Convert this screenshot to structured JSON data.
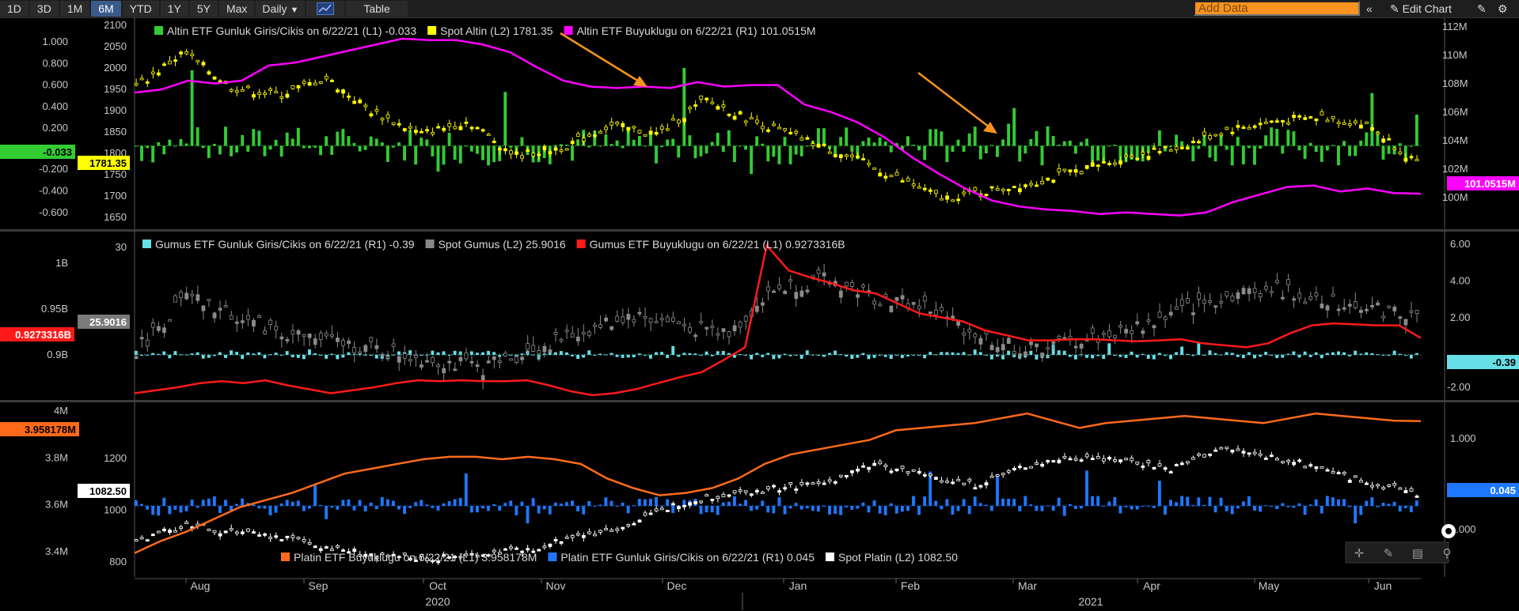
{
  "toolbar": {
    "ranges": [
      "1D",
      "3D",
      "1M",
      "6M",
      "YTD",
      "1Y",
      "5Y",
      "Max"
    ],
    "active_range": "6M",
    "frequency": "Daily",
    "table_label": "Table",
    "add_data_placeholder": "Add Data",
    "edit_chart_label": "Edit Chart"
  },
  "chart_data": [
    {
      "type": "bar+candlestick+line",
      "legend": [
        {
          "label": "Altin ETF Gunluk Giris/Cikis on 6/22/21 (L1) -0.033",
          "color": "#33cc33"
        },
        {
          "label": "Spot Altin (L2) 1781.35",
          "color": "#ffff00"
        },
        {
          "label": "Altin ETF Buyuklugu on 6/22/21 (R1) 101.0515M",
          "color": "#ff00ff"
        }
      ],
      "left1_ticks": [
        "1.000",
        "0.800",
        "0.600",
        "0.400",
        "0.200",
        "-0.200",
        "-0.400",
        "-0.600"
      ],
      "left2_ticks": [
        "2100",
        "2050",
        "2000",
        "1950",
        "1900",
        "1850",
        "1800",
        "1750",
        "1700",
        "1650"
      ],
      "right1_ticks": [
        "112M",
        "110M",
        "108M",
        "106M",
        "104M",
        "102M",
        "100M"
      ],
      "last_values": {
        "flows": "-0.033",
        "spot": "1781.35",
        "size": "101.0515M"
      },
      "series": [
        {
          "name": "Altin ETF Gunluk Giris/Cikis",
          "axis": "L1",
          "ylim": [
            -0.7,
            1.1
          ]
        },
        {
          "name": "Spot Altin",
          "axis": "L2",
          "ylim": [
            1640,
            2110
          ]
        },
        {
          "name": "Altin ETF Buyuklugu",
          "axis": "R1",
          "ylim": [
            99,
            112.5
          ],
          "values": [
            107.8,
            108.0,
            108.6,
            108.4,
            108.6,
            109.6,
            109.8,
            110.2,
            110.6,
            111.0,
            111.4,
            111.3,
            111.3,
            111.0,
            110.5,
            109.5,
            108.6,
            108.2,
            108.1,
            108.2,
            108.1,
            108.5,
            108.2,
            108.3,
            108.3,
            107.0,
            106.5,
            105.8,
            104.8,
            103.5,
            102.4,
            101.4,
            100.6,
            100.2,
            100.0,
            99.9,
            99.7,
            99.8,
            99.7,
            99.6,
            99.8,
            100.5,
            101.0,
            101.5,
            101.6,
            101.2,
            101.4,
            101.1,
            101.0515
          ]
        }
      ]
    },
    {
      "type": "bar+candlestick+line",
      "legend": [
        {
          "label": "Gumus ETF Gunluk Giris/Cikis on 6/22/21 (R1) -0.39",
          "color": "#66e0e6"
        },
        {
          "label": "Spot Gumus (L2) 25.9016",
          "color": "#888888"
        },
        {
          "label": "Gumus ETF Buyuklugu on 6/22/21 (L1) 0.9273316B",
          "color": "#ff1a1a"
        }
      ],
      "left1_ticks": [
        "1B",
        "0.95B",
        "0.9B"
      ],
      "left2_ticks": [
        "30",
        "25"
      ],
      "right1_ticks": [
        "6.00",
        "4.00",
        "2.00",
        "-2.00"
      ],
      "last_values": {
        "flows": "-0.39",
        "spot": "25.9016",
        "size": "0.9273316B"
      },
      "series": [
        {
          "name": "Gumus ETF Gunluk Giris/Cikis",
          "axis": "R1",
          "ylim": [
            -2.2,
            6.5
          ]
        },
        {
          "name": "Spot Gumus",
          "axis": "L2",
          "ylim": [
            21.5,
            30.5
          ]
        },
        {
          "name": "Gumus ETF Buyuklugu",
          "axis": "L1",
          "ylim": [
            0.87,
            1.03
          ],
          "values": [
            0.872,
            0.875,
            0.878,
            0.882,
            0.884,
            0.882,
            0.885,
            0.88,
            0.876,
            0.872,
            0.875,
            0.878,
            0.882,
            0.885,
            0.884,
            0.885,
            0.884,
            0.884,
            0.885,
            0.88,
            0.874,
            0.87,
            0.872,
            0.876,
            0.882,
            0.888,
            0.893,
            0.905,
            0.918,
            1.02,
            0.995,
            0.988,
            0.982,
            0.975,
            0.972,
            0.962,
            0.952,
            0.948,
            0.944,
            0.935,
            0.93,
            0.925,
            0.925,
            0.926,
            0.926,
            0.925,
            0.924,
            0.925,
            0.926,
            0.922,
            0.92,
            0.918,
            0.922,
            0.932,
            0.94,
            0.942,
            0.941,
            0.94,
            0.94,
            0.9273316
          ]
        }
      ]
    },
    {
      "type": "bar+candlestick+line",
      "legend": [
        {
          "label": "Platin ETF Buyuklugu on 6/22/21 (L1) 3.958178M",
          "color": "#ff6a1a"
        },
        {
          "label": "Platin ETF Gunluk Giris/Cikis on 6/22/21 (R1) 0.045",
          "color": "#1e78ff"
        },
        {
          "label": "Spot Platin (L2) 1082.50",
          "color": "#ffffff"
        }
      ],
      "left1_ticks": [
        "4M",
        "3.8M",
        "3.6M",
        "3.4M"
      ],
      "left2_ticks": [
        "1200",
        "1000",
        "800"
      ],
      "right1_ticks": [
        "1.000",
        "1.000"
      ],
      "last_values": {
        "flows": "0.045",
        "spot": "1082.50",
        "size": "3.958178M"
      },
      "series": [
        {
          "name": "Platin ETF Gunluk Giris/Cikis",
          "axis": "R1",
          "ylim": [
            -1.0,
            1.5
          ]
        },
        {
          "name": "Spot Platin",
          "axis": "L2",
          "ylim": [
            780,
            1410
          ]
        },
        {
          "name": "Platin ETF Buyuklugu",
          "axis": "L1",
          "ylim": [
            3.33,
            4.02
          ],
          "values": [
            3.41,
            3.46,
            3.5,
            3.55,
            3.6,
            3.63,
            3.66,
            3.7,
            3.74,
            3.76,
            3.78,
            3.8,
            3.81,
            3.81,
            3.8,
            3.81,
            3.8,
            3.78,
            3.72,
            3.68,
            3.65,
            3.66,
            3.68,
            3.72,
            3.78,
            3.82,
            3.84,
            3.86,
            3.88,
            3.92,
            3.93,
            3.94,
            3.95,
            3.97,
            3.99,
            3.96,
            3.93,
            3.95,
            3.96,
            3.97,
            3.98,
            3.97,
            3.96,
            3.95,
            3.97,
            3.99,
            3.98,
            3.97,
            3.96,
            3.958178
          ]
        }
      ]
    }
  ],
  "x_axis": {
    "months": [
      "Aug",
      "Sep",
      "Oct",
      "Nov",
      "Dec",
      "Jan",
      "Feb",
      "Mar",
      "Apr",
      "May",
      "Jun"
    ],
    "years": [
      "2020",
      "2021"
    ]
  },
  "controls": {
    "icons": [
      "crosshair-icon",
      "draw-icon",
      "table-icon",
      "zoom-icon"
    ]
  }
}
